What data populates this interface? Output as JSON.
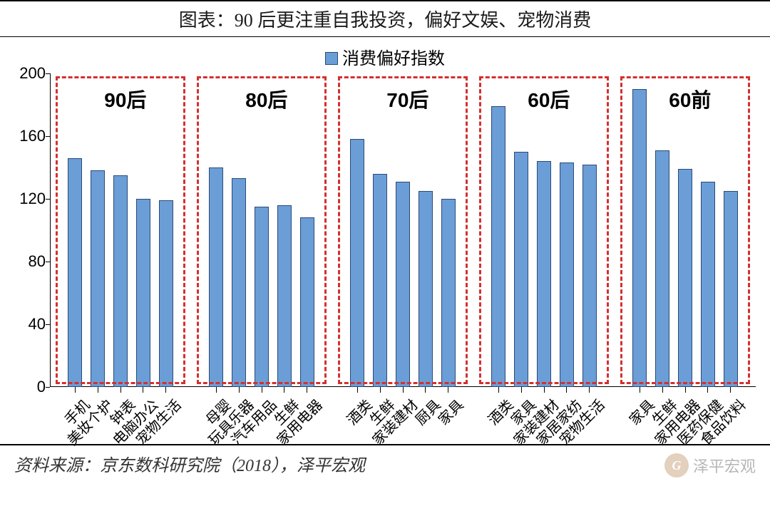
{
  "title": "图表：90 后更注重自我投资，偏好文娱、宠物消费",
  "legend_label": "消费偏好指数",
  "source": "资料来源：京东数科研究院（2018），泽平宏观",
  "watermark_text": "泽平宏观",
  "colors": {
    "bar_fill": "#6b9ed6",
    "bar_border": "#2a4a7a",
    "group_border": "#d43030",
    "background": "#ffffff",
    "axis": "#000000",
    "text": "#000000"
  },
  "chart": {
    "type": "bar",
    "ylim": [
      0,
      200
    ],
    "ytick_step": 40,
    "yticks": [
      0,
      40,
      80,
      120,
      160,
      200
    ],
    "bar_width_ratio": 0.62,
    "gap_between_groups_slots": 1.2,
    "title_fontsize": 26,
    "legend_fontsize": 24,
    "ytick_fontsize": 22,
    "xlabel_fontsize": 20,
    "xlabel_rotation_deg": -45,
    "group_label_fontsize": 28,
    "group_box_top_value": 198,
    "group_box_bottom_value": 2
  },
  "groups": [
    {
      "label": "90后",
      "items": [
        {
          "category": "手机",
          "value": 146
        },
        {
          "category": "美妆个护",
          "value": 138
        },
        {
          "category": "钟表",
          "value": 135
        },
        {
          "category": "电脑办公",
          "value": 120
        },
        {
          "category": "宠物生活",
          "value": 119
        }
      ]
    },
    {
      "label": "80后",
      "items": [
        {
          "category": "母婴",
          "value": 140
        },
        {
          "category": "玩具乐器",
          "value": 133
        },
        {
          "category": "汽车用品",
          "value": 115
        },
        {
          "category": "生鲜",
          "value": 116
        },
        {
          "category": "家用电器",
          "value": 108
        }
      ]
    },
    {
      "label": "70后",
      "items": [
        {
          "category": "酒类",
          "value": 158
        },
        {
          "category": "生鲜",
          "value": 136
        },
        {
          "category": "家装建材",
          "value": 131
        },
        {
          "category": "厨具",
          "value": 125
        },
        {
          "category": "家具",
          "value": 120
        }
      ]
    },
    {
      "label": "60后",
      "items": [
        {
          "category": "酒类",
          "value": 179
        },
        {
          "category": "家具",
          "value": 150
        },
        {
          "category": "家装建材",
          "value": 144
        },
        {
          "category": "家居家纺",
          "value": 143
        },
        {
          "category": "宠物生活",
          "value": 142
        }
      ]
    },
    {
      "label": "60前",
      "items": [
        {
          "category": "家具",
          "value": 190
        },
        {
          "category": "生鲜",
          "value": 151
        },
        {
          "category": "家用电器",
          "value": 139
        },
        {
          "category": "医药保健",
          "value": 131
        },
        {
          "category": "食品饮料",
          "value": 125
        }
      ]
    }
  ]
}
